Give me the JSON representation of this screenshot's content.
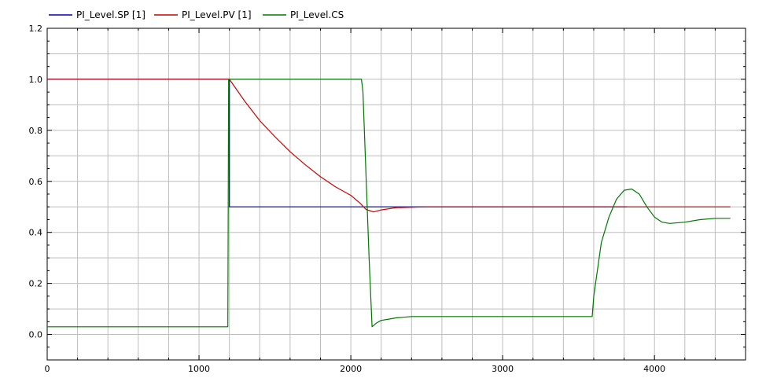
{
  "chart_data": {
    "type": "line",
    "title": "",
    "xlabel": "",
    "ylabel": "",
    "xlim": [
      0,
      4600
    ],
    "ylim": [
      -0.1,
      1.2
    ],
    "grid": true,
    "legend_position": "top-left",
    "x_ticks": [
      0,
      1000,
      2000,
      3000,
      4000
    ],
    "x_tick_labels": [
      "0",
      "1000",
      "2000",
      "3000",
      "4000"
    ],
    "y_ticks": [
      0.0,
      0.2,
      0.4,
      0.6,
      0.8,
      1.0,
      1.2
    ],
    "y_tick_labels": [
      "0.0",
      "0.2",
      "0.4",
      "0.6",
      "0.8",
      "1.0",
      "1.2"
    ],
    "series": [
      {
        "name": "PI_Level.SP [1]",
        "color": "#0000b4",
        "x": [
          0,
          1200,
          1200,
          3820
        ],
        "y": [
          1.0,
          1.0,
          0.5,
          0.5
        ]
      },
      {
        "name": "PI_Level.PV [1]",
        "color": "#cc0000",
        "x": [
          0,
          1200,
          1300,
          1400,
          1500,
          1600,
          1700,
          1800,
          1900,
          2000,
          2060,
          2100,
          2150,
          2200,
          2300,
          2500,
          3000,
          4500
        ],
        "y": [
          1.0,
          1.0,
          0.915,
          0.838,
          0.775,
          0.716,
          0.665,
          0.618,
          0.578,
          0.545,
          0.515,
          0.49,
          0.48,
          0.488,
          0.497,
          0.5,
          0.5,
          0.5
        ]
      },
      {
        "name": "PI_Level.CS",
        "color": "#007800",
        "x": [
          0,
          1190,
          1195,
          2070,
          2080,
          2120,
          2140,
          2170,
          2200,
          2250,
          2300,
          2400,
          3000,
          3590,
          3600,
          3650,
          3700,
          3750,
          3800,
          3850,
          3900,
          3950,
          4000,
          4050,
          4100,
          4200,
          4300,
          4400,
          4500
        ],
        "y": [
          0.03,
          0.03,
          1.0,
          1.0,
          0.95,
          0.3,
          0.03,
          0.045,
          0.055,
          0.06,
          0.065,
          0.07,
          0.07,
          0.07,
          0.15,
          0.36,
          0.46,
          0.53,
          0.565,
          0.57,
          0.55,
          0.5,
          0.46,
          0.44,
          0.435,
          0.44,
          0.45,
          0.455,
          0.455
        ]
      }
    ]
  }
}
